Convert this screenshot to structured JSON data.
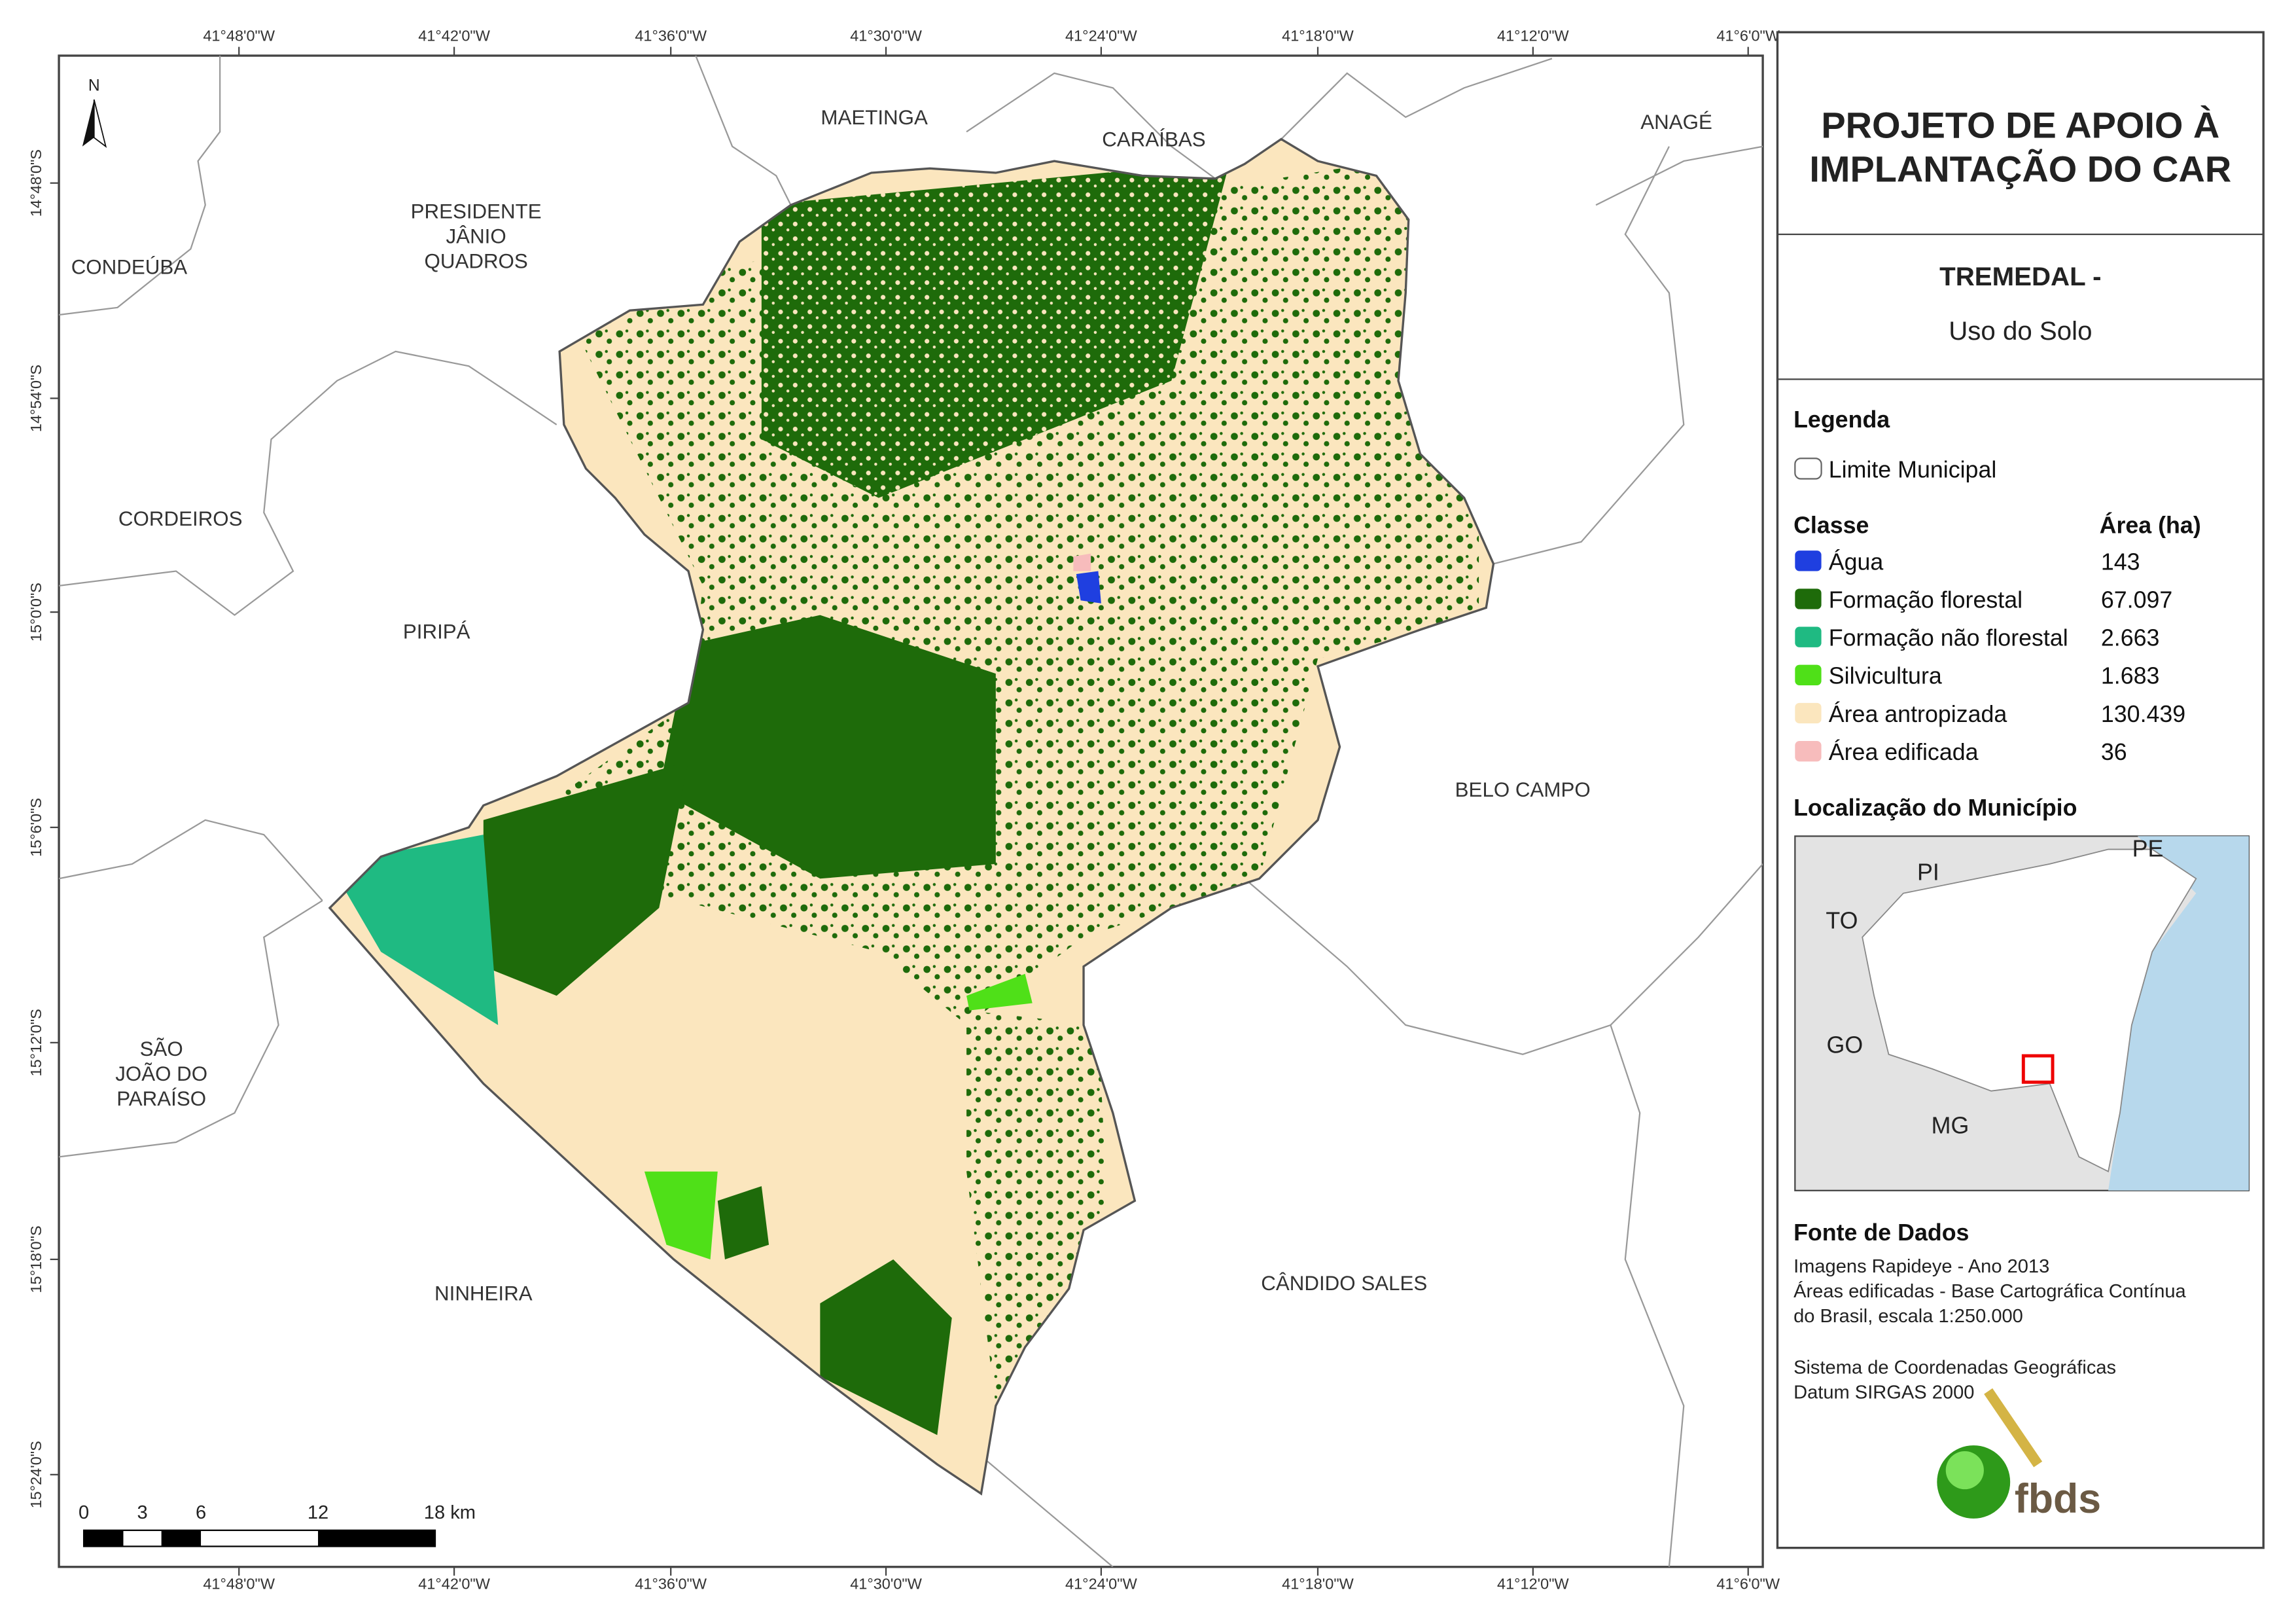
{
  "map": {
    "north": "N",
    "lon_labels": [
      "41°48'0\"W",
      "41°42'0\"W",
      "41°36'0\"W",
      "41°30'0\"W",
      "41°24'0\"W",
      "41°18'0\"W",
      "41°12'0\"W",
      "41°6'0\"W"
    ],
    "lat_labels": [
      "14°48'0\"S",
      "14°54'0\"S",
      "15°0'0\"S",
      "15°6'0\"S",
      "15°12'0\"S",
      "15°18'0\"S",
      "15°24'0\"S"
    ],
    "places": [
      "MAETINGA",
      "CARAÍBAS",
      "ANAGÉ",
      "PRESIDENTE",
      "JÂNIO",
      "QUADROS",
      "CONDEÚBA",
      "CORDEIROS",
      "PIRIPÁ",
      "BELO CAMPO",
      "SÃO",
      "JOÃO DO",
      "PARAÍSO",
      "NINHEIRA",
      "CÂNDIDO SALES"
    ],
    "scale_labels": [
      "0",
      "3",
      "6",
      "12",
      "18 km"
    ]
  },
  "panel": {
    "title": [
      "PROJETO DE APOIO À",
      "IMPLANTAÇÃO DO CAR"
    ],
    "municipality": "TREMEDAL -",
    "theme": "Uso do Solo",
    "legend_title": "Legenda",
    "boundary": "Limite Municipal",
    "class_header": "Classe",
    "area_header": "Área (ha)",
    "classes": [
      {
        "name": "Água",
        "color": "#1f3fe0",
        "area": "143"
      },
      {
        "name": "Formação florestal",
        "color": "#1e6b0a",
        "area": "67.097"
      },
      {
        "name": "Formação não florestal",
        "color": "#1fba82",
        "area": "2.663"
      },
      {
        "name": "Silvicultura",
        "color": "#4fe018",
        "area": "1.683"
      },
      {
        "name": "Área antropizada",
        "color": "#fbe6be",
        "area": "130.439"
      },
      {
        "name": "Área edificada",
        "color": "#f7bcbc",
        "area": "36"
      }
    ],
    "location_title": "Localização do Município",
    "inset_labels": [
      "PI",
      "PE",
      "TO",
      "GO",
      "MG"
    ],
    "source_title": "Fonte de Dados",
    "source_lines": [
      "Imagens Rapideye - Ano 2013",
      "Áreas edificadas - Base Cartográfica Contínua",
      "do Brasil, escala 1:250.000",
      "Sistema de Coordenadas Geográficas",
      "Datum SIRGAS 2000"
    ],
    "logo": "fbds"
  }
}
